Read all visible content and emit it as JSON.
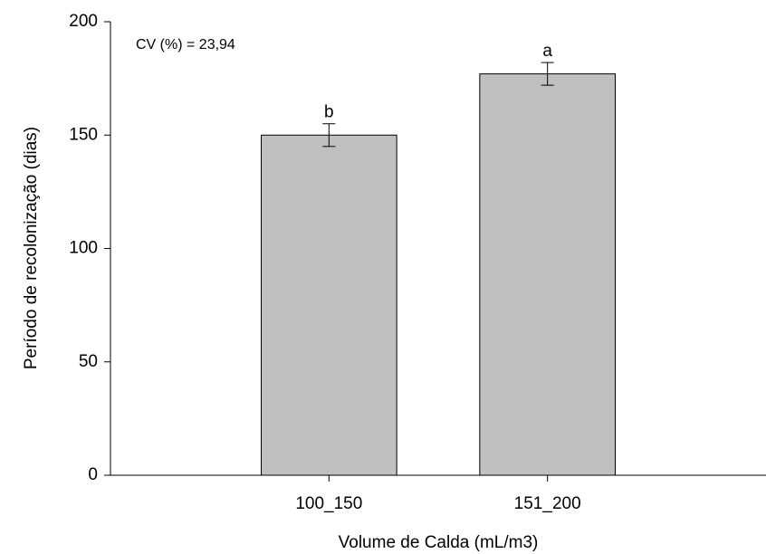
{
  "chart_data": {
    "type": "bar",
    "xlabel": "Volume de Calda (mL/m3)",
    "ylabel": "Período de recolonização (dias)",
    "annotation": "CV (%) = 23,94",
    "categories": [
      "100_150",
      "151_200"
    ],
    "values": [
      150,
      177
    ],
    "errors": [
      5,
      5
    ],
    "letters": [
      "b",
      "a"
    ],
    "color": "#c0c0c0",
    "ylim": [
      0,
      200
    ],
    "yticks": [
      0,
      50,
      100,
      150,
      200
    ],
    "grid": false
  }
}
